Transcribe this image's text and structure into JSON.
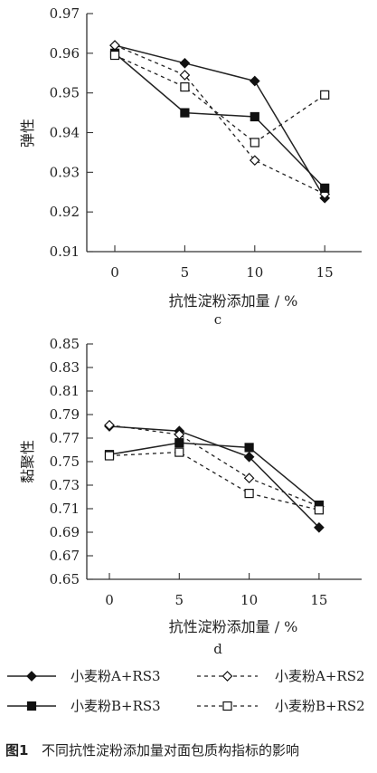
{
  "chart_data": [
    {
      "type": "line",
      "panel_label": "c",
      "ylabel": "弹性",
      "xlabel": "抗性淀粉添加量 / %",
      "x": [
        0,
        5,
        10,
        15
      ],
      "x_ticks": [
        "0",
        "5",
        "10",
        "15"
      ],
      "ylim": [
        0.91,
        0.97
      ],
      "y_ticks": [
        "0.91",
        "0.92",
        "0.93",
        "0.94",
        "0.95",
        "0.96",
        "0.97"
      ],
      "grid": false,
      "series": [
        {
          "name": "小麦粉A+RS3",
          "values": [
            0.962,
            0.9575,
            0.953,
            0.9235
          ],
          "marker": "diamond",
          "filled": true,
          "dashed": false
        },
        {
          "name": "小麦粉A+RS2",
          "values": [
            0.962,
            0.9545,
            0.933,
            0.9245
          ],
          "marker": "diamond",
          "filled": false,
          "dashed": true
        },
        {
          "name": "小麦粉B+RS3",
          "values": [
            0.96,
            0.945,
            0.944,
            0.926
          ],
          "marker": "square",
          "filled": true,
          "dashed": false
        },
        {
          "name": "小麦粉B+RS2",
          "values": [
            0.9595,
            0.9515,
            0.9375,
            0.9495
          ],
          "marker": "square",
          "filled": false,
          "dashed": true
        }
      ]
    },
    {
      "type": "line",
      "panel_label": "d",
      "ylabel": "黏聚性",
      "xlabel": "抗性淀粉添加量 / %",
      "x": [
        0,
        5,
        10,
        15
      ],
      "x_ticks": [
        "0",
        "5",
        "10",
        "15"
      ],
      "ylim": [
        0.65,
        0.85
      ],
      "y_ticks": [
        "0.65",
        "0.67",
        "0.69",
        "0.71",
        "0.73",
        "0.75",
        "0.77",
        "0.79",
        "0.81",
        "0.83",
        "0.85"
      ],
      "grid": false,
      "series": [
        {
          "name": "小麦粉A+RS3",
          "values": [
            0.78,
            0.776,
            0.754,
            0.694
          ],
          "marker": "diamond",
          "filled": true,
          "dashed": false
        },
        {
          "name": "小麦粉A+RS2",
          "values": [
            0.781,
            0.773,
            0.736,
            0.712
          ],
          "marker": "diamond",
          "filled": false,
          "dashed": true
        },
        {
          "name": "小麦粉B+RS3",
          "values": [
            0.756,
            0.766,
            0.762,
            0.713
          ],
          "marker": "square",
          "filled": true,
          "dashed": false
        },
        {
          "name": "小麦粉B+RS2",
          "values": [
            0.755,
            0.758,
            0.723,
            0.709
          ],
          "marker": "square",
          "filled": false,
          "dashed": true
        }
      ]
    }
  ],
  "legend": [
    {
      "label": "小麦粉A+RS3",
      "marker": "diamond",
      "filled": true,
      "dashed": false
    },
    {
      "label": "小麦粉A+RS2",
      "marker": "diamond",
      "filled": false,
      "dashed": true
    },
    {
      "label": "小麦粉B+RS3",
      "marker": "square",
      "filled": true,
      "dashed": false
    },
    {
      "label": "小麦粉B+RS2",
      "marker": "square",
      "filled": false,
      "dashed": true
    }
  ],
  "caption": {
    "number": "图1",
    "text": "不同抗性淀粉添加量对面包质构指标的影响"
  }
}
